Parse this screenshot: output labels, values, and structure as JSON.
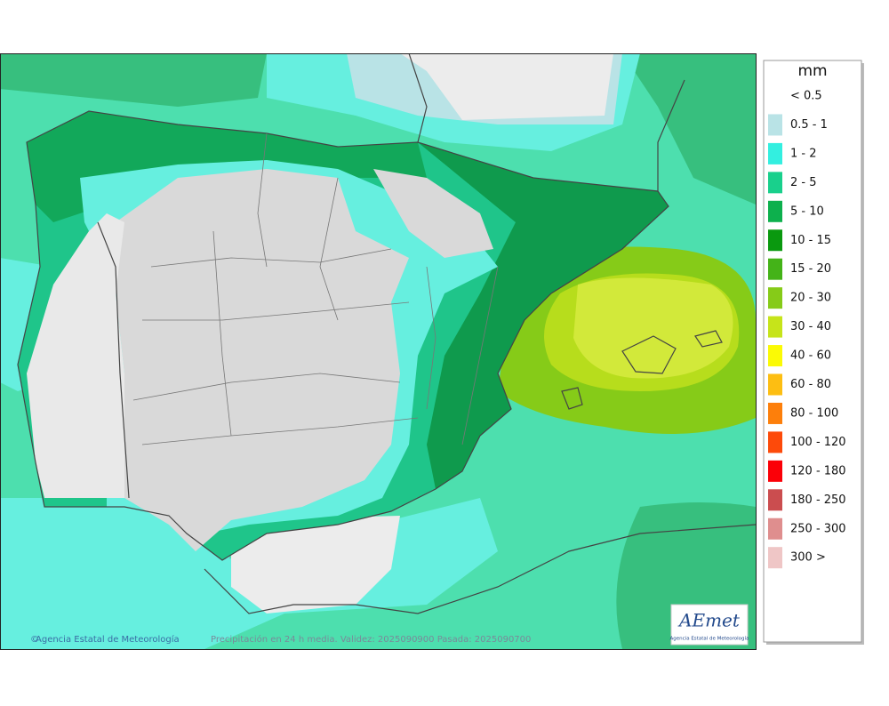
{
  "map": {
    "legend": {
      "unit": "mm",
      "items": [
        {
          "label": "< 0.5"
        },
        {
          "label": "0.5 - 1",
          "color": "#b9e3e6"
        },
        {
          "label": "1 - 2",
          "color": "#33efe0"
        },
        {
          "label": "2 - 5",
          "color": "#19d08c"
        },
        {
          "label": "5 - 10",
          "color": "#0db04d"
        },
        {
          "label": "10 - 15",
          "color": "#0a990f"
        },
        {
          "label": "15 - 20",
          "color": "#44b318"
        },
        {
          "label": "20 - 30",
          "color": "#86cb18"
        },
        {
          "label": "30 - 40",
          "color": "#c6e41a"
        },
        {
          "label": "40 - 60",
          "color": "#fbfa05"
        },
        {
          "label": "60 - 80",
          "color": "#fdbe12"
        },
        {
          "label": "80 - 100",
          "color": "#fd7f0b"
        },
        {
          "label": "100 - 120",
          "color": "#fd4a0a"
        },
        {
          "label": "120 - 180",
          "color": "#fb0008"
        },
        {
          "label": "180 - 250",
          "color": "#cb4d4f"
        },
        {
          "label": "250 - 300",
          "color": "#df8e8e"
        },
        {
          "label": "300 >",
          "color": "#efc6c6"
        }
      ]
    },
    "credit": "Agencia Estatal de Meteorología",
    "caption": "Precipitación en 24 h media. Validez: 2025090900 Pasada: 2025090700",
    "logo": {
      "name": "AEmet",
      "subtitle": "Agencia Estatal de Meteorología"
    }
  }
}
